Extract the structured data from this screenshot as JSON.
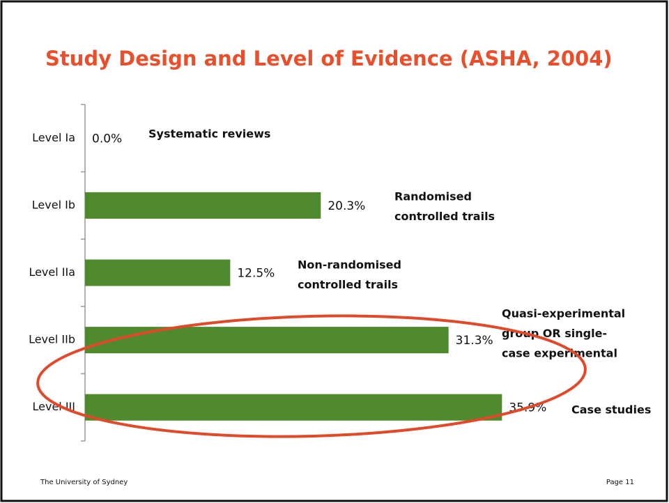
{
  "chart_data": {
    "type": "barh",
    "title": "Study Design and Level of Evidence (ASHA, 2004)",
    "categories": [
      "Level Ia",
      "Level Ib",
      "Level IIa",
      "Level IIb",
      "Level III"
    ],
    "values": [
      0,
      20.3,
      12.5,
      31.3,
      35.9
    ],
    "value_labels": [
      "0.0%",
      "20.3%",
      "12.5%",
      "31.3%",
      "35.9%"
    ],
    "annotations": [
      [
        "Systematic reviews"
      ],
      [
        "Randomised",
        "controlled trails"
      ],
      [
        "Non-randomised",
        "controlled trails"
      ],
      [
        "Quasi-experimental",
        "group OR single-",
        "case experimental"
      ],
      [
        "Case studies"
      ]
    ],
    "color": "#4f8a2f",
    "xlim": [
      0,
      36
    ]
  },
  "footer": {
    "left": "The University of Sydney",
    "right": "Page 11"
  }
}
